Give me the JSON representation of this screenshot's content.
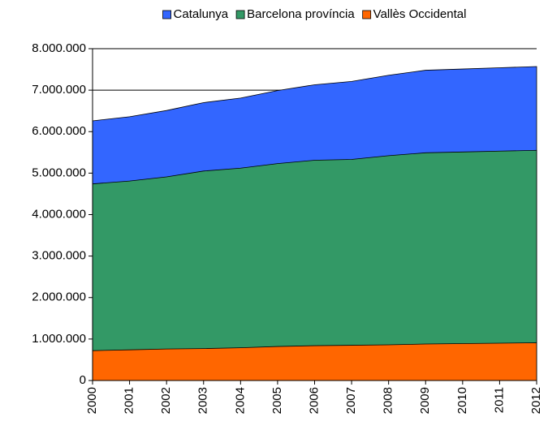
{
  "chart_data": {
    "type": "area",
    "categories": [
      "2000",
      "2001",
      "2002",
      "2003",
      "2004",
      "2005",
      "2006",
      "2007",
      "2008",
      "2009",
      "2010",
      "2011",
      "2012"
    ],
    "series": [
      {
        "name": "Catalunya",
        "color": "#3366ff",
        "values": [
          6260000,
          6360000,
          6510000,
          6700000,
          6810000,
          6990000,
          7130000,
          7210000,
          7360000,
          7480000,
          7510000,
          7540000,
          7570000
        ]
      },
      {
        "name": "Barcelona província",
        "color": "#339966",
        "values": [
          4740000,
          4810000,
          4910000,
          5050000,
          5120000,
          5230000,
          5310000,
          5330000,
          5420000,
          5490000,
          5510000,
          5530000,
          5550000
        ]
      },
      {
        "name": "Vallès Occidental",
        "color": "#ff6600",
        "values": [
          720000,
          740000,
          760000,
          770000,
          790000,
          820000,
          840000,
          850000,
          860000,
          880000,
          890000,
          900000,
          910000
        ]
      }
    ],
    "ylim": [
      0,
      8000000
    ],
    "yticks": [
      0,
      {
        "value": 1000000,
        "label": "1.000.000"
      },
      {
        "value": 2000000,
        "label": "2.000.000"
      },
      {
        "value": 3000000,
        "label": "3.000.000"
      },
      {
        "value": 4000000,
        "label": "4.000.000"
      },
      {
        "value": 5000000,
        "label": "5.000.000"
      },
      {
        "value": 6000000,
        "label": "6.000.000"
      },
      {
        "value": 7000000,
        "label": "7.000.000"
      },
      {
        "value": 8000000,
        "label": "8.000.000"
      }
    ],
    "grid": true
  }
}
